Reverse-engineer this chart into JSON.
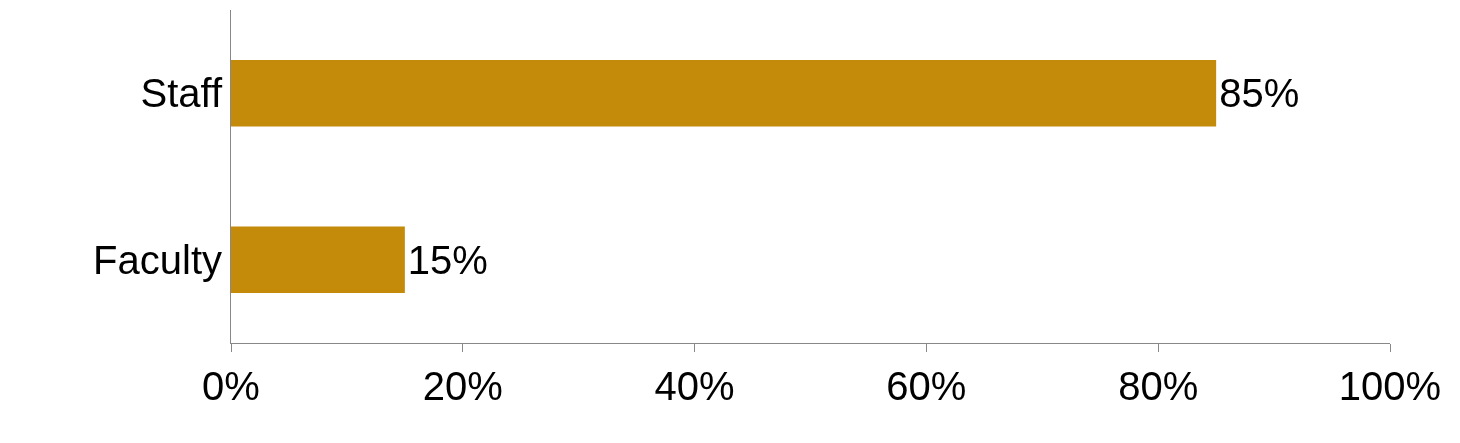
{
  "chart_data": {
    "type": "bar",
    "orientation": "horizontal",
    "categories": [
      "Staff",
      "Faculty"
    ],
    "values": [
      85,
      15
    ],
    "value_labels": [
      "85%",
      "15%"
    ],
    "color": "#c48a0a",
    "xlim": [
      0,
      100
    ],
    "xticks": [
      {
        "value": 0,
        "label": "0%"
      },
      {
        "value": 20,
        "label": "20%"
      },
      {
        "value": 40,
        "label": "40%"
      },
      {
        "value": 60,
        "label": "60%"
      },
      {
        "value": 80,
        "label": "80%"
      },
      {
        "value": 100,
        "label": "100%"
      }
    ],
    "grid": false,
    "legend": false
  }
}
